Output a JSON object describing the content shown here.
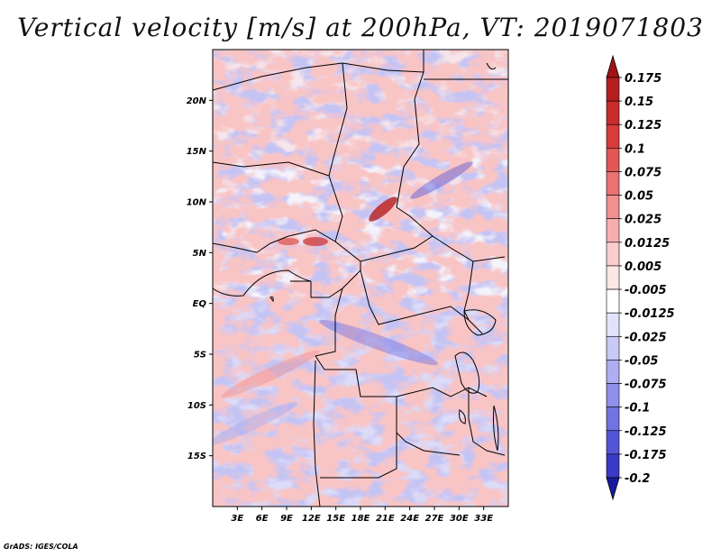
{
  "title": "Vertical velocity [m/s] at 200hPa, VT: 2019071803",
  "credit": "GrADS: IGES/COLA",
  "map": {
    "lon_range": [
      0,
      36
    ],
    "lat_range": [
      -20,
      25
    ],
    "lat_ticks": [
      {
        "value": 20,
        "label": "20N"
      },
      {
        "value": 15,
        "label": "15N"
      },
      {
        "value": 10,
        "label": "10N"
      },
      {
        "value": 5,
        "label": "5N"
      },
      {
        "value": 0,
        "label": "EQ"
      },
      {
        "value": -5,
        "label": "5S"
      },
      {
        "value": -10,
        "label": "10S"
      },
      {
        "value": -15,
        "label": "15S"
      }
    ],
    "lon_ticks": [
      {
        "value": 3,
        "label": "3E"
      },
      {
        "value": 6,
        "label": "6E"
      },
      {
        "value": 9,
        "label": "9E"
      },
      {
        "value": 12,
        "label": "12E"
      },
      {
        "value": 15,
        "label": "15E"
      },
      {
        "value": 18,
        "label": "18E"
      },
      {
        "value": 21,
        "label": "21E"
      },
      {
        "value": 24,
        "label": "24E"
      },
      {
        "value": 27,
        "label": "27E"
      },
      {
        "value": 30,
        "label": "30E"
      },
      {
        "value": 33,
        "label": "33E"
      }
    ]
  },
  "colorbar": {
    "levels": [
      {
        "label": "0.175",
        "color": "#b41f1f"
      },
      {
        "label": "0.15",
        "color": "#c82d2d"
      },
      {
        "label": "0.125",
        "color": "#d63c3c"
      },
      {
        "label": "0.1",
        "color": "#e25656"
      },
      {
        "label": "0.075",
        "color": "#ea7272"
      },
      {
        "label": "0.05",
        "color": "#f09090"
      },
      {
        "label": "0.025",
        "color": "#f5aeae"
      },
      {
        "label": "0.0125",
        "color": "#f9cdcd"
      },
      {
        "label": "0.005",
        "color": "#fce6e6"
      },
      {
        "label": "-0.005",
        "color": "#ffffff"
      },
      {
        "label": "-0.0125",
        "color": "#e2e2fa"
      },
      {
        "label": "-0.025",
        "color": "#c9c9f5"
      },
      {
        "label": "-0.05",
        "color": "#aeaef0"
      },
      {
        "label": "-0.075",
        "color": "#9090ea"
      },
      {
        "label": "-0.1",
        "color": "#7272e2"
      },
      {
        "label": "-0.125",
        "color": "#5454d6"
      },
      {
        "label": "-0.175",
        "color": "#3a3ac4"
      },
      {
        "label": "-0.2",
        "color": "#2424b0"
      }
    ],
    "top_color": "#a01414",
    "bottom_color": "#1a1aa0"
  },
  "colors": {
    "positive_strong": "#b41f1f",
    "positive_weak": "#f5aeae",
    "negative_weak": "#c9c9f5",
    "negative_strong": "#3a3ac4",
    "border": "#000000"
  }
}
